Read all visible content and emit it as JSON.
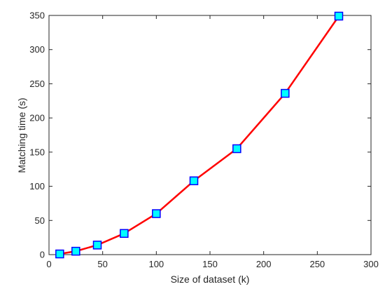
{
  "chart_data": {
    "type": "line",
    "title": "",
    "xlabel": "Size of dataset (k)",
    "ylabel": "Matching time (s)",
    "xlim": [
      0,
      300
    ],
    "ylim": [
      0,
      350
    ],
    "xticks": [
      0,
      50,
      100,
      150,
      200,
      250,
      300
    ],
    "yticks": [
      0,
      50,
      100,
      150,
      200,
      250,
      300,
      350
    ],
    "grid": false,
    "legend": "none",
    "series": [
      {
        "x": [
          10,
          25,
          45,
          70,
          100,
          135,
          175,
          220,
          270
        ],
        "y": [
          1,
          5,
          14,
          31,
          60,
          108,
          155,
          236,
          349
        ],
        "line_color": "#ff0000",
        "marker": "square",
        "marker_fill": "#00ffff",
        "marker_edge": "#0000ff"
      }
    ]
  }
}
